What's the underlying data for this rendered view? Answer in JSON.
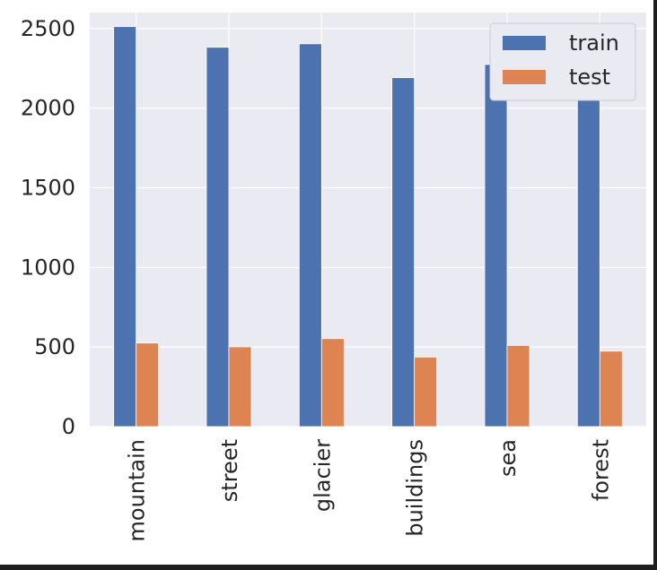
{
  "chart_data": {
    "type": "bar",
    "categories": [
      "mountain",
      "street",
      "glacier",
      "buildings",
      "sea",
      "forest"
    ],
    "series": [
      {
        "name": "train",
        "color": "#4c72b0",
        "values": [
          2512,
          2382,
          2404,
          2191,
          2274,
          2271
        ]
      },
      {
        "name": "test",
        "color": "#dd8452",
        "values": [
          525,
          501,
          553,
          437,
          510,
          474
        ]
      }
    ],
    "ylim": [
      0,
      2600
    ],
    "yticks": [
      0,
      500,
      1000,
      1500,
      2000,
      2500
    ],
    "grid": true,
    "legend_position": "top-right",
    "title": "",
    "xlabel": "",
    "ylabel": ""
  }
}
